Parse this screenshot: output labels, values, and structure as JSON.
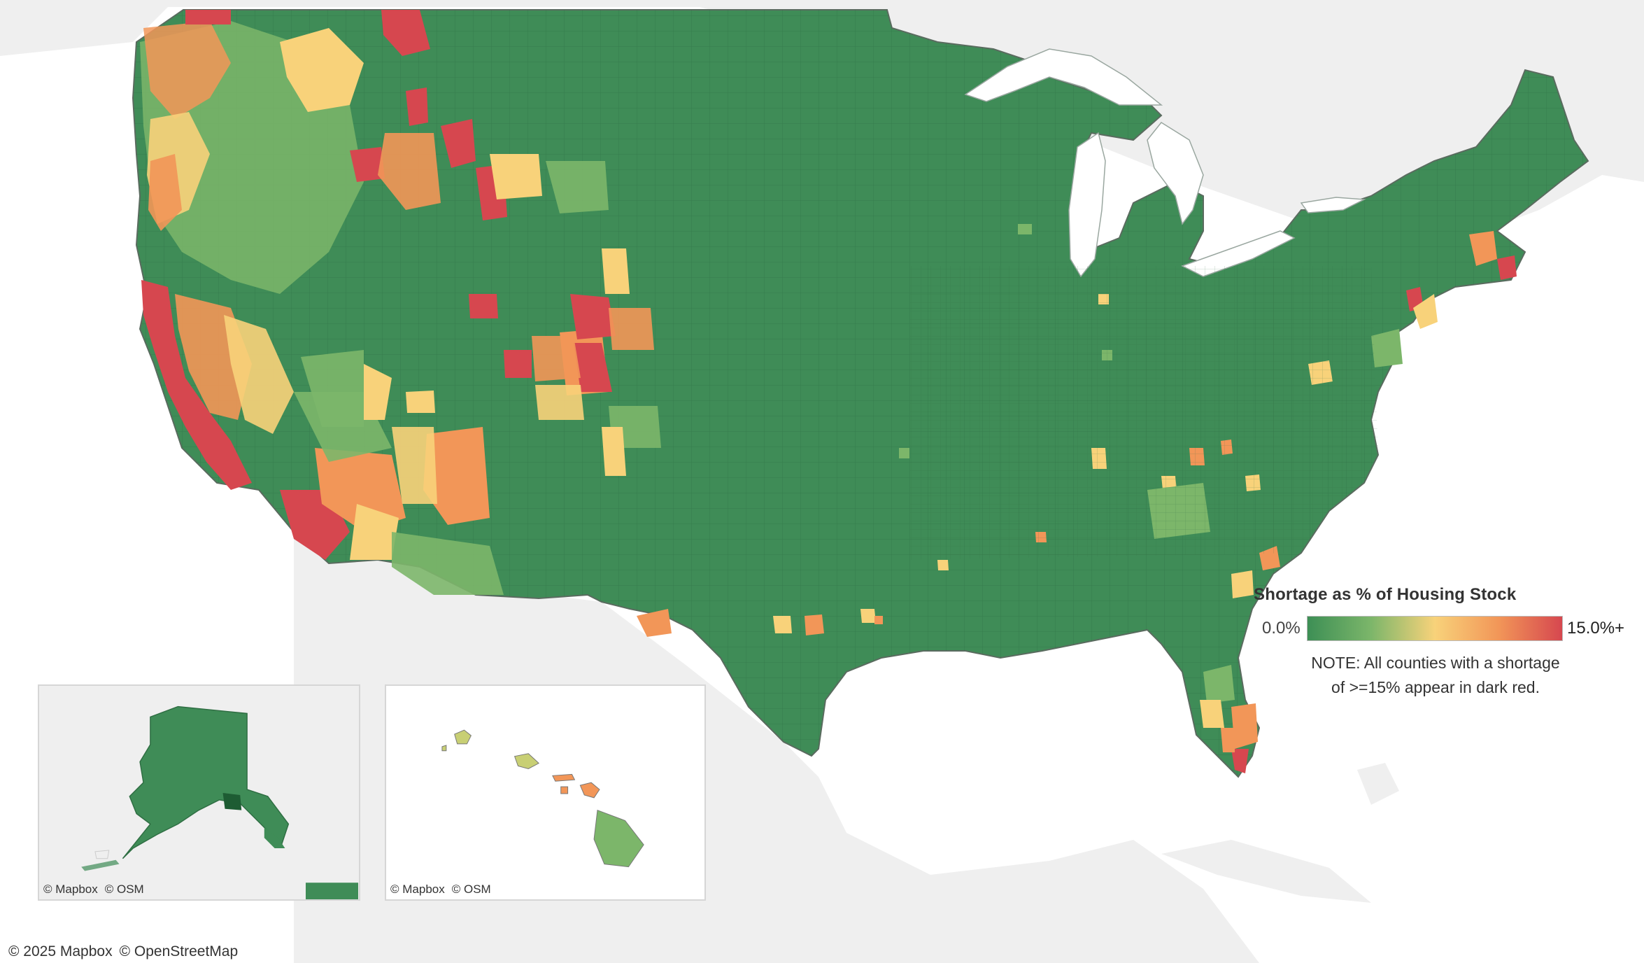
{
  "legend": {
    "title": "Shortage as % of Housing Stock",
    "min_label": "0.0%",
    "max_label": "15.0%+",
    "note_line1": "NOTE: All counties with a shortage",
    "note_line2": "of >=15% appear in dark red.",
    "scale_min_percent": 0,
    "scale_max_percent": 15,
    "gradient_colors": [
      "#3d8f55",
      "#7cb66a",
      "#f8d27a",
      "#f29658",
      "#d6474f"
    ]
  },
  "attribution": {
    "main_mapbox": "© 2025 Mapbox",
    "main_osm": "© OpenStreetMap",
    "inset_mapbox": "© Mapbox",
    "inset_osm": "© OSM"
  },
  "colors": {
    "land_base": "#3f8c57",
    "background_land": "#efefef",
    "water": "#ffffff",
    "county_border": "#5a6b5f",
    "shortage_red": "#d6474f",
    "shortage_orange": "#f29658",
    "shortage_yellow": "#f8d27a",
    "light_green": "#7cb66a"
  }
}
